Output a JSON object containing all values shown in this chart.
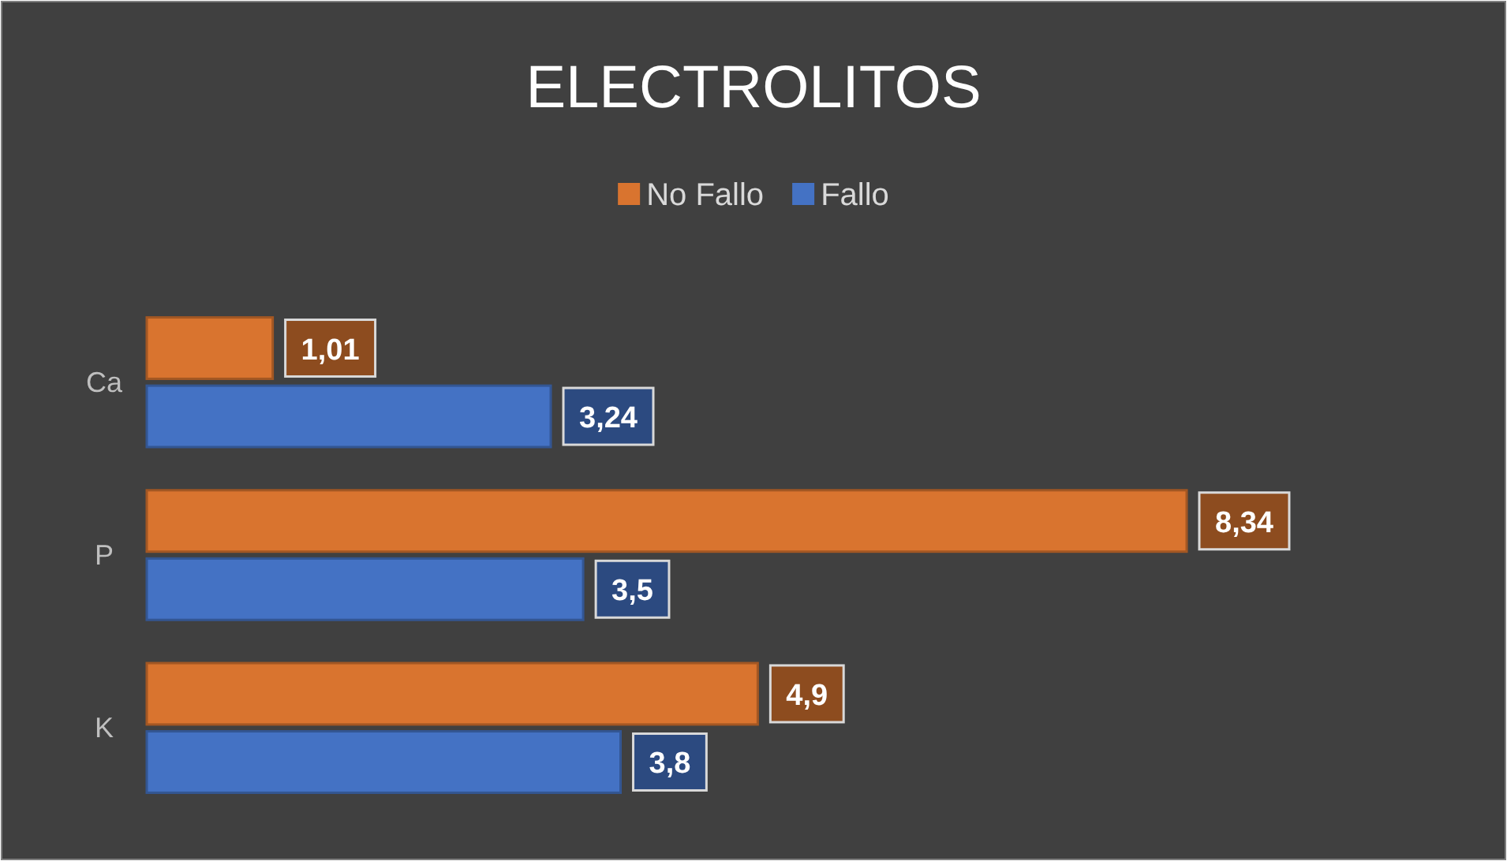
{
  "chart_data": {
    "type": "bar",
    "orientation": "horizontal",
    "title": "ELECTROLITOS",
    "categories": [
      "Ca",
      "P",
      "K"
    ],
    "legend": "top",
    "series": [
      {
        "name": "No Fallo",
        "color": "#d9742f",
        "values": [
          1.01,
          8.34,
          4.9
        ],
        "value_labels": [
          "1,01",
          "8,34",
          "4,9"
        ]
      },
      {
        "name": "Fallo",
        "color": "#4472c4",
        "values": [
          3.24,
          3.5,
          3.8
        ],
        "value_labels": [
          "3,24",
          "3,5",
          "3,8"
        ]
      }
    ]
  }
}
